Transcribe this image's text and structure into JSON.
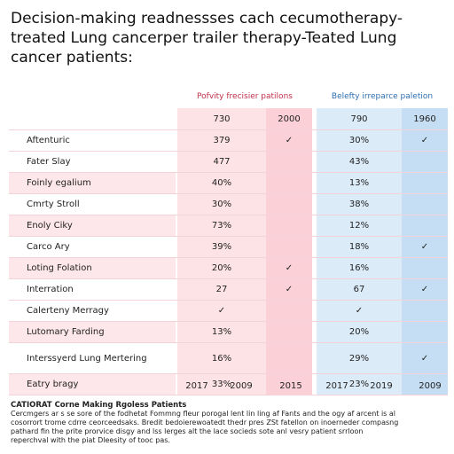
{
  "title": "Decision-making readnessses cach cecumotherapy-treated Lung cancerper trailer therapy-Teated Lung cancer patients:",
  "table": {
    "groups": [
      "Pofvity frecisier patilons",
      "Belefty irreparce paletion"
    ],
    "header": [
      "730",
      "2000",
      "790",
      "1960"
    ],
    "rows": [
      [
        "Aftenturic",
        "379",
        "✓",
        "30%",
        "✓"
      ],
      [
        "Fater Slay",
        "477",
        null,
        "43%",
        null
      ],
      [
        "Foinly egalium",
        "40%",
        null,
        "13%",
        null
      ],
      [
        "Cmrty Stroll",
        "30%",
        null,
        "38%",
        null
      ],
      [
        "Enoly Ciky",
        "73%",
        null,
        "12%",
        null
      ],
      [
        "Carco Ary",
        "39%",
        null,
        "18%",
        "✓"
      ],
      [
        "Loting Folation",
        "20%",
        "✓",
        "16%",
        null
      ],
      [
        "Interration",
        "27",
        "✓",
        "67",
        "✓"
      ],
      [
        "Calerteny Merragy",
        "✓",
        null,
        "✓",
        null
      ],
      [
        "Lutomary Farding",
        "13%",
        null,
        "20%",
        null
      ],
      [
        "Interssyerd Lung Mertering",
        "16%",
        null,
        "29%",
        "✓"
      ],
      [
        "Eatry bragy",
        "33%",
        null,
        "23%",
        null
      ]
    ],
    "footer": [
      "2017",
      "2009",
      "2015",
      "2017",
      "2019",
      "2009"
    ]
  },
  "note": {
    "heading": "CATIORAT Corne Making Rgoless Patients",
    "lines": [
      "Cercmgers ar s se sore of the fodhetat Fommng fleur porogal lent lin ling af Fants and the ogy af arcent is al",
      "cosorrort trome cdrre ceorceedsaks. Bredit bedoierewoatedt thedr pres ZSt fatellon on inoerneder compasng",
      "pathard fin the prite prorvice disgy and lss lerges alt the lace socieds sote anl vesry patient srrloon",
      "reperchval with the piat Dleesity of tooc pas."
    ]
  }
}
